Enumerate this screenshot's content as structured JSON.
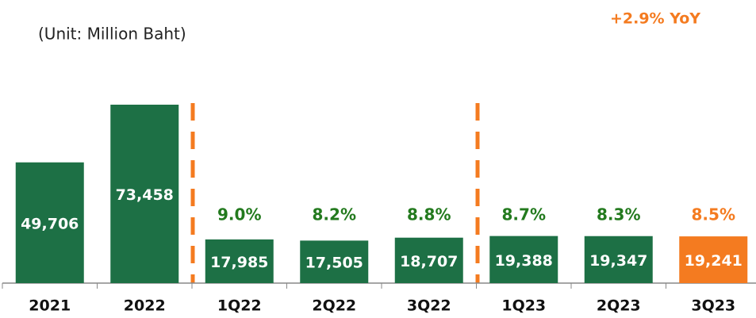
{
  "chart_data": {
    "type": "bar",
    "subtitle": "(Unit:  Million Baht)",
    "annotation": "+2.9% YoY",
    "annotation_color": "#f47b20",
    "categories": [
      "2021",
      "2022",
      "1Q22",
      "2Q22",
      "3Q22",
      "1Q23",
      "2Q23",
      "3Q23"
    ],
    "values": [
      49706,
      73458,
      17985,
      17505,
      18707,
      19388,
      19347,
      19241
    ],
    "value_labels": [
      "49,706",
      "73,458",
      "17,985",
      "17,505",
      "18,707",
      "19,388",
      "19,347",
      "19,241"
    ],
    "colors": [
      "#1d7045",
      "#1d7045",
      "#1d7045",
      "#1d7045",
      "#1d7045",
      "#1d7045",
      "#1d7045",
      "#f47b20"
    ],
    "margins": [
      null,
      null,
      9.0,
      8.2,
      8.8,
      8.7,
      8.3,
      8.5
    ],
    "margin_labels": [
      null,
      null,
      "9.0%",
      "8.2%",
      "8.8%",
      "8.7%",
      "8.3%",
      "8.5%"
    ],
    "margin_colors": [
      null,
      null,
      "#237a1e",
      "#237a1e",
      "#237a1e",
      "#237a1e",
      "#237a1e",
      "#f47b20"
    ]
  }
}
